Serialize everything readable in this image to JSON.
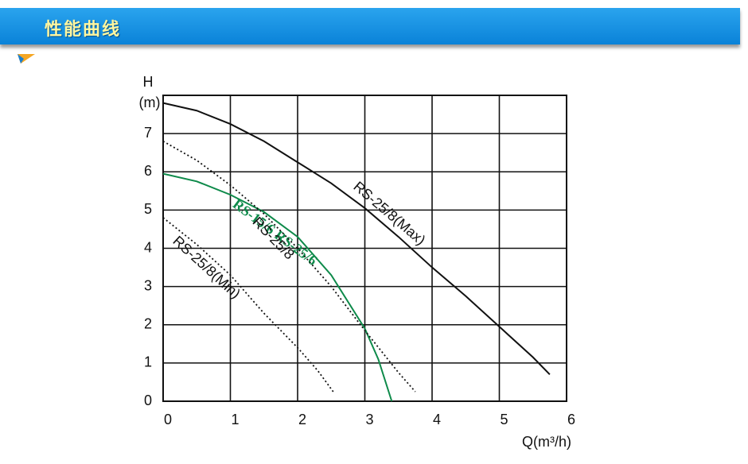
{
  "header": {
    "title": "性能曲线"
  },
  "chart_data": {
    "type": "line",
    "x_label": "Q(m³/h)",
    "y_label": [
      "H",
      "(m)"
    ],
    "xlim": [
      0,
      6
    ],
    "xticks": [
      0,
      1,
      2,
      3,
      4,
      5,
      6
    ],
    "ylim": [
      0,
      8
    ],
    "yticks": [
      0,
      1,
      2,
      3,
      4,
      5,
      6,
      7
    ],
    "grid": true,
    "series": [
      {
        "name": "RS-25/8(Max)",
        "color": "#111111",
        "style": "solid",
        "x": [
          0,
          0.5,
          1,
          1.5,
          2,
          2.5,
          3,
          3.5,
          4,
          4.5,
          5,
          5.5,
          5.75
        ],
        "values": [
          7.8,
          7.6,
          7.25,
          6.8,
          6.25,
          5.7,
          5.05,
          4.3,
          3.5,
          2.75,
          1.95,
          1.15,
          0.7
        ]
      },
      {
        "name": "RS-15/6 RS-25/6",
        "color": "#0e8a4a",
        "style": "solid",
        "x": [
          0,
          0.5,
          1,
          1.5,
          2,
          2.5,
          3,
          3.2,
          3.4
        ],
        "values": [
          5.95,
          5.75,
          5.4,
          4.95,
          4.3,
          3.3,
          1.9,
          1.1,
          0
        ]
      },
      {
        "name": "RS-25/8",
        "color": "#111111",
        "style": "dotted",
        "x": [
          0,
          0.5,
          1,
          1.5,
          2,
          2.5,
          3,
          3.5,
          3.75
        ],
        "values": [
          6.8,
          6.3,
          5.65,
          4.9,
          4.0,
          3.0,
          1.85,
          0.75,
          0.25
        ]
      },
      {
        "name": "RS-25/8(Min)",
        "color": "#111111",
        "style": "dotted",
        "x": [
          0,
          0.5,
          1,
          1.5,
          2,
          2.3,
          2.55
        ],
        "values": [
          4.8,
          4.1,
          3.3,
          2.3,
          1.4,
          0.8,
          0.2
        ]
      }
    ]
  }
}
